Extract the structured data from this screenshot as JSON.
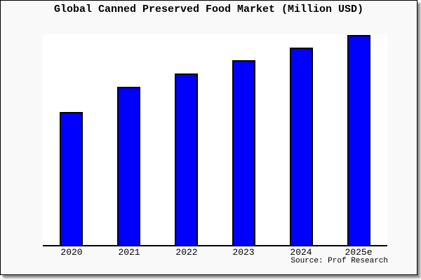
{
  "chart_data": {
    "type": "bar",
    "title": "Global Canned Preserved Food Market (Million USD)",
    "categories": [
      "2020",
      "2021",
      "2022",
      "2023",
      "2024",
      "2025e"
    ],
    "values": [
      63.3,
      75.3,
      81.7,
      88.0,
      94.0,
      100.0
    ],
    "values_note": "y-axis has no tick labels; values are relative bar heights as % of the 2025e bar",
    "xlabel": "",
    "ylabel": "",
    "ylim": [
      0,
      100
    ],
    "grid": false,
    "legend": null,
    "bar_color": "#0000ff",
    "bar_border_color": "#000000"
  },
  "figure": {
    "source": "Source: Prof Research",
    "canvas_background": "#f9f9f9",
    "plot_background": "#ffffff",
    "frame_color": "#000000",
    "text_color": "#000000"
  }
}
